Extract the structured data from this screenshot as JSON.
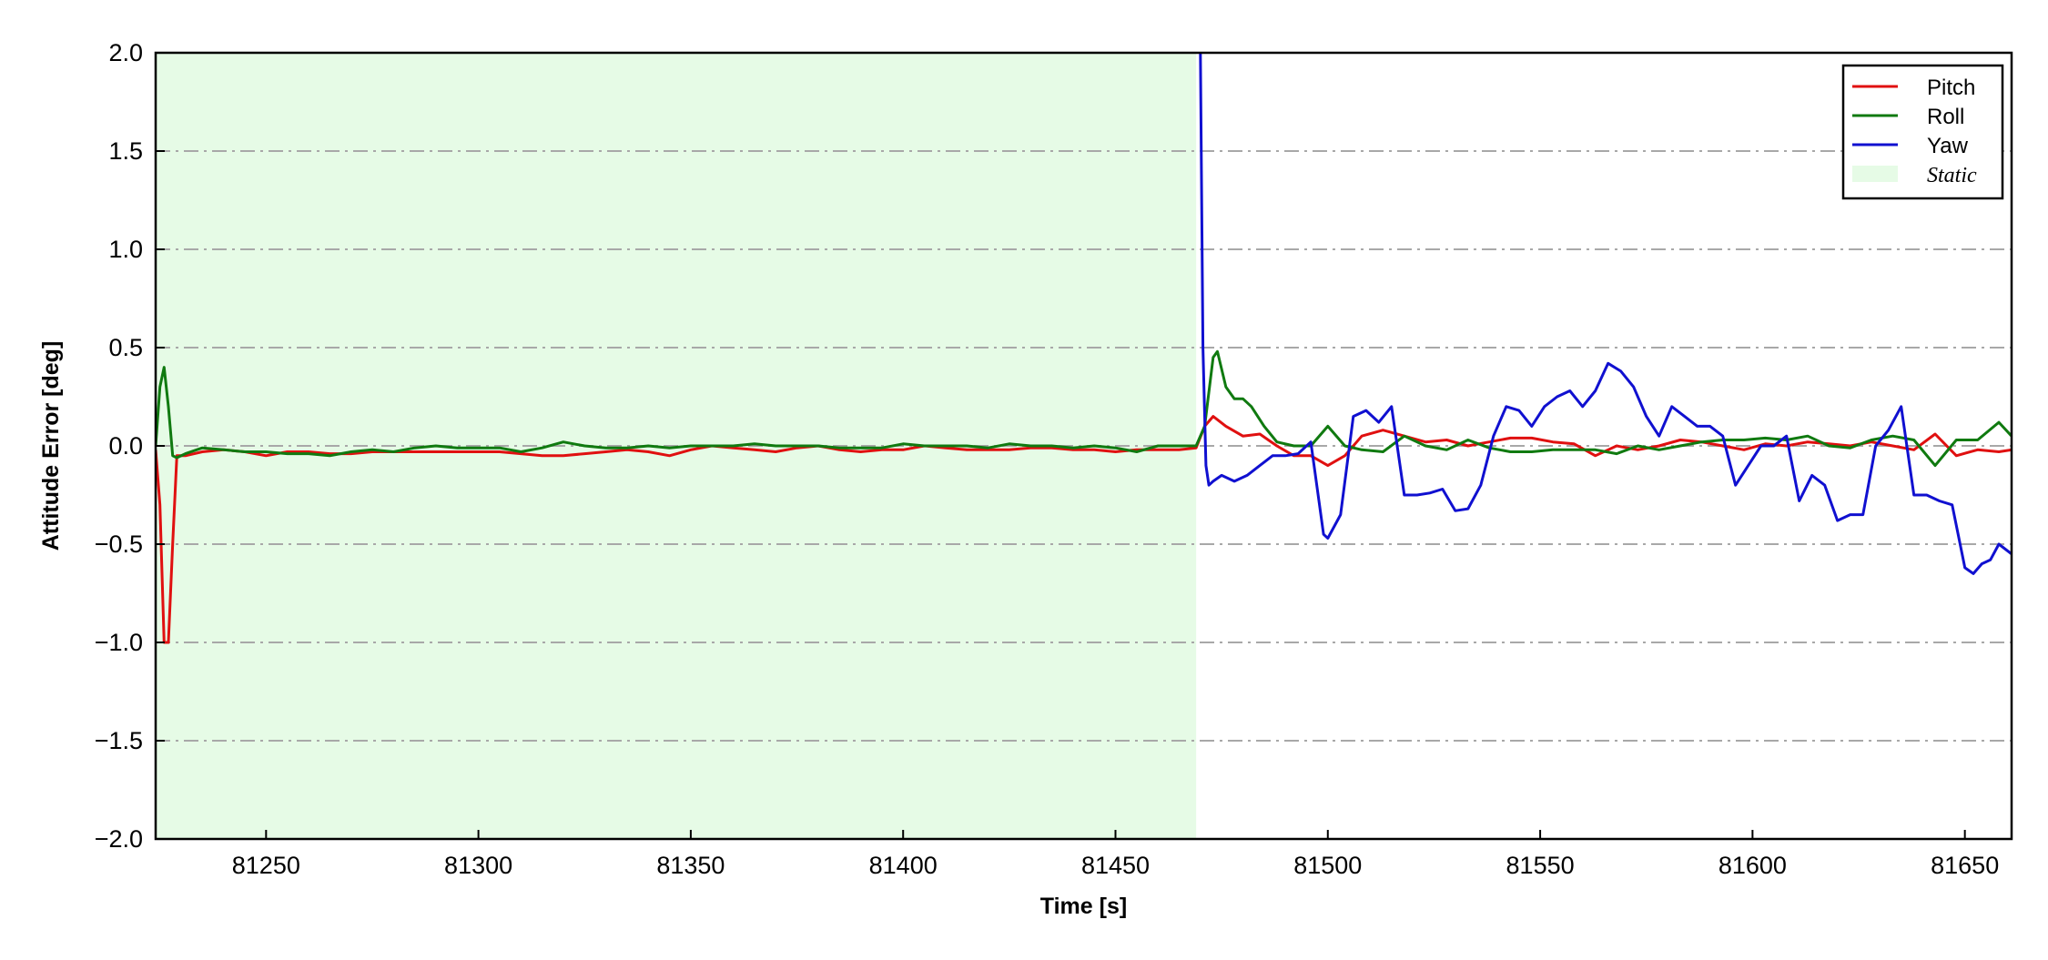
{
  "chart_data": {
    "type": "line",
    "xlabel": "Time [s]",
    "ylabel": "Attitude Error [deg]",
    "xlim": [
      81224,
      81661
    ],
    "ylim": [
      -2.0,
      2.0
    ],
    "x_ticks": [
      81250,
      81300,
      81350,
      81400,
      81450,
      81500,
      81550,
      81600,
      81650
    ],
    "x_tick_labels": [
      "81250",
      "81300",
      "81350",
      "81400",
      "81450",
      "81500",
      "81550",
      "81600",
      "81650"
    ],
    "y_ticks": [
      -2.0,
      -1.5,
      -1.0,
      -0.5,
      0.0,
      0.5,
      1.0,
      1.5,
      2.0
    ],
    "y_tick_labels": [
      "−2.0",
      "−1.5",
      "−1.0",
      "−0.5",
      "0.0",
      "0.5",
      "1.0",
      "1.5",
      "2.0"
    ],
    "grid": "horizontal dash-dot",
    "legend_position": "top-right",
    "shaded_region": {
      "label": "Static",
      "x_start": 81224,
      "x_end": 81469,
      "color": "#e6fbe6"
    },
    "series": [
      {
        "name": "Pitch",
        "color": "#e01010",
        "x": [
          81224,
          81225,
          81226,
          81227,
          81228,
          81229,
          81231,
          81235,
          81240,
          81245,
          81250,
          81255,
          81260,
          81265,
          81270,
          81275,
          81280,
          81285,
          81290,
          81295,
          81300,
          81305,
          81310,
          81315,
          81320,
          81325,
          81330,
          81335,
          81340,
          81345,
          81350,
          81355,
          81360,
          81365,
          81370,
          81375,
          81380,
          81385,
          81390,
          81395,
          81400,
          81405,
          81410,
          81415,
          81420,
          81425,
          81430,
          81435,
          81440,
          81445,
          81450,
          81455,
          81460,
          81465,
          81469,
          81471,
          81473,
          81476,
          81480,
          81484,
          81488,
          81492,
          81496,
          81500,
          81504,
          81508,
          81513,
          81518,
          81523,
          81528,
          81533,
          81538,
          81543,
          81548,
          81553,
          81558,
          81563,
          81568,
          81573,
          81578,
          81583,
          81588,
          81593,
          81598,
          81603,
          81608,
          81613,
          81618,
          81623,
          81628,
          81633,
          81638,
          81643,
          81648,
          81653,
          81658,
          81661
        ],
        "y": [
          -0.02,
          -0.3,
          -1.0,
          -1.0,
          -0.5,
          -0.05,
          -0.05,
          -0.03,
          -0.02,
          -0.03,
          -0.05,
          -0.03,
          -0.03,
          -0.04,
          -0.04,
          -0.03,
          -0.03,
          -0.03,
          -0.03,
          -0.03,
          -0.03,
          -0.03,
          -0.04,
          -0.05,
          -0.05,
          -0.04,
          -0.03,
          -0.02,
          -0.03,
          -0.05,
          -0.02,
          0.0,
          -0.01,
          -0.02,
          -0.03,
          -0.01,
          0.0,
          -0.02,
          -0.03,
          -0.02,
          -0.02,
          0.0,
          -0.01,
          -0.02,
          -0.02,
          -0.02,
          -0.01,
          -0.01,
          -0.02,
          -0.02,
          -0.03,
          -0.02,
          -0.02,
          -0.02,
          -0.01,
          0.1,
          0.15,
          0.1,
          0.05,
          0.06,
          0.0,
          -0.05,
          -0.05,
          -0.1,
          -0.05,
          0.05,
          0.08,
          0.05,
          0.02,
          0.03,
          0.0,
          0.02,
          0.04,
          0.04,
          0.02,
          0.01,
          -0.05,
          0.0,
          -0.02,
          0.0,
          0.03,
          0.02,
          0.0,
          -0.02,
          0.01,
          0.0,
          0.02,
          0.01,
          0.0,
          0.02,
          0.0,
          -0.02,
          0.06,
          -0.05,
          -0.02,
          -0.03,
          -0.02
        ]
      },
      {
        "name": "Roll",
        "color": "#107a10",
        "x": [
          81224,
          81225,
          81226,
          81227,
          81228,
          81229,
          81231,
          81235,
          81240,
          81245,
          81250,
          81255,
          81260,
          81265,
          81270,
          81275,
          81280,
          81285,
          81290,
          81295,
          81300,
          81305,
          81310,
          81315,
          81320,
          81325,
          81330,
          81335,
          81340,
          81345,
          81350,
          81355,
          81360,
          81365,
          81370,
          81375,
          81380,
          81385,
          81390,
          81395,
          81400,
          81405,
          81410,
          81415,
          81420,
          81425,
          81430,
          81435,
          81440,
          81445,
          81450,
          81455,
          81460,
          81465,
          81469,
          81471,
          81473,
          81474,
          81476,
          81478,
          81480,
          81482,
          81485,
          81488,
          81492,
          81496,
          81500,
          81504,
          81508,
          81513,
          81518,
          81523,
          81528,
          81533,
          81538,
          81543,
          81548,
          81553,
          81558,
          81563,
          81568,
          81573,
          81578,
          81583,
          81588,
          81593,
          81598,
          81603,
          81608,
          81613,
          81618,
          81623,
          81628,
          81633,
          81638,
          81643,
          81648,
          81653,
          81658,
          81661
        ],
        "y": [
          0.0,
          0.3,
          0.4,
          0.2,
          -0.05,
          -0.06,
          -0.04,
          -0.01,
          -0.02,
          -0.03,
          -0.03,
          -0.04,
          -0.04,
          -0.05,
          -0.03,
          -0.02,
          -0.03,
          -0.01,
          0.0,
          -0.01,
          -0.01,
          -0.01,
          -0.03,
          -0.01,
          0.02,
          0.0,
          -0.01,
          -0.01,
          0.0,
          -0.01,
          0.0,
          0.0,
          0.0,
          0.01,
          0.0,
          0.0,
          0.0,
          -0.01,
          -0.01,
          -0.01,
          0.01,
          0.0,
          0.0,
          0.0,
          -0.01,
          0.01,
          0.0,
          0.0,
          -0.01,
          0.0,
          -0.01,
          -0.03,
          0.0,
          0.0,
          0.0,
          0.1,
          0.45,
          0.48,
          0.3,
          0.24,
          0.24,
          0.2,
          0.1,
          0.02,
          0.0,
          0.0,
          0.1,
          0.0,
          -0.02,
          -0.03,
          0.05,
          0.0,
          -0.02,
          0.03,
          -0.01,
          -0.03,
          -0.03,
          -0.02,
          -0.02,
          -0.02,
          -0.04,
          0.0,
          -0.02,
          0.0,
          0.02,
          0.03,
          0.03,
          0.04,
          0.03,
          0.05,
          0.0,
          -0.01,
          0.03,
          0.05,
          0.03,
          -0.1,
          0.03,
          0.03,
          0.12,
          0.05
        ]
      },
      {
        "name": "Yaw",
        "color": "#1010d0",
        "x": [
          81470,
          81470.6,
          81471.3,
          81472,
          81473,
          81475,
          81478,
          81481,
          81484,
          81487,
          81490,
          81493,
          81496,
          81499,
          81500,
          81503,
          81506,
          81509,
          81512,
          81515,
          81518,
          81521,
          81524,
          81527,
          81530,
          81533,
          81536,
          81539,
          81542,
          81545,
          81548,
          81551,
          81554,
          81557,
          81560,
          81563,
          81566,
          81569,
          81572,
          81575,
          81578,
          81581,
          81584,
          81587,
          81590,
          81593,
          81596,
          81599,
          81602,
          81605,
          81608,
          81611,
          81614,
          81617,
          81620,
          81623,
          81626,
          81629,
          81632,
          81635,
          81638,
          81641,
          81644,
          81647,
          81650,
          81652,
          81654,
          81656,
          81658,
          81661
        ],
        "y": [
          2.0,
          0.5,
          -0.1,
          -0.2,
          -0.18,
          -0.15,
          -0.18,
          -0.15,
          -0.1,
          -0.05,
          -0.05,
          -0.04,
          0.02,
          -0.45,
          -0.47,
          -0.35,
          0.15,
          0.18,
          0.12,
          0.2,
          -0.25,
          -0.25,
          -0.24,
          -0.22,
          -0.33,
          -0.32,
          -0.2,
          0.05,
          0.2,
          0.18,
          0.1,
          0.2,
          0.25,
          0.28,
          0.2,
          0.28,
          0.42,
          0.38,
          0.3,
          0.15,
          0.05,
          0.2,
          0.15,
          0.1,
          0.1,
          0.05,
          -0.2,
          -0.1,
          0.0,
          0.0,
          0.05,
          -0.28,
          -0.15,
          -0.2,
          -0.38,
          -0.35,
          -0.35,
          0.0,
          0.08,
          0.2,
          -0.25,
          -0.25,
          -0.28,
          -0.3,
          -0.62,
          -0.65,
          -0.6,
          -0.58,
          -0.5,
          -0.55
        ]
      }
    ]
  }
}
